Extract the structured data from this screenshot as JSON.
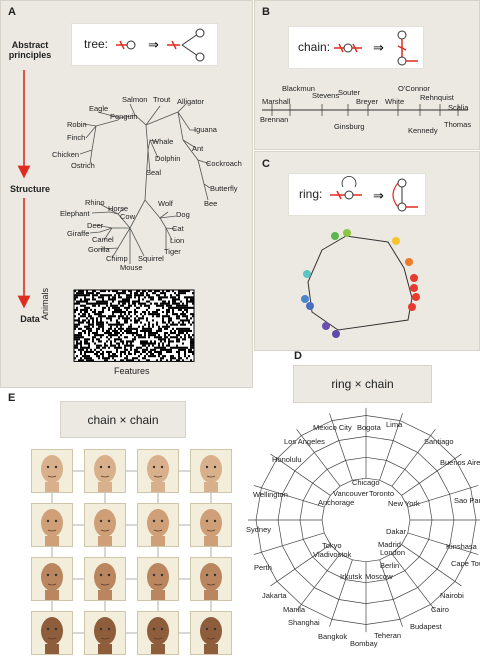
{
  "panels": {
    "a": "A",
    "b": "B",
    "c": "C",
    "d": "D",
    "e": "E"
  },
  "panel_a": {
    "sidebar": {
      "abstract": "Abstract principles",
      "structure": "Structure",
      "data": "Data"
    },
    "form_label": "tree:",
    "tree_labels": [
      "Salmon",
      "Trout",
      "Alligator",
      "Eagle",
      "Penguin",
      "Robin",
      "Finch",
      "Chicken",
      "Ostrich",
      "Iguana",
      "Whale",
      "Ant",
      "Dolphin",
      "Cockroach",
      "Seal",
      "Butterfly",
      "Bee",
      "Rhino",
      "Horse",
      "Elephant",
      "Cow",
      "Deer",
      "Giraffe",
      "Camel",
      "Gorilla",
      "Chimp",
      "Mouse",
      "Squirrel",
      "Wolf",
      "Dog",
      "Cat",
      "Lion",
      "Tiger"
    ],
    "matrix": {
      "ylabel": "Animals",
      "xlabel": "Features"
    }
  },
  "panel_b": {
    "form_label": "chain:",
    "justices": [
      "Marshall",
      "Brennan",
      "Blackmun",
      "Stevens",
      "Souter",
      "Ginsburg",
      "Breyer",
      "White",
      "O'Connor",
      "Rehnquist",
      "Kennedy",
      "Scalia",
      "Thomas"
    ]
  },
  "panel_c": {
    "form_label": "ring:",
    "dot_colors": [
      "#e63b2e",
      "#e63b2e",
      "#e63b2e",
      "#e63b2e",
      "#ee7a2a",
      "#f3c530",
      "#8cc63f",
      "#58b84c",
      "#5bc4c4",
      "#4d85c8",
      "#4d6ec0",
      "#6a4fb0",
      "#5d4aa8"
    ]
  },
  "panel_d": {
    "title": "ring × chain",
    "cities": [
      "Mexico City",
      "Bogota",
      "Lima",
      "Los Angeles",
      "Santiago",
      "Honolulu",
      "Buenos Aires",
      "Chicago",
      "Wellington",
      "Vancouver",
      "Toronto",
      "Anchorage",
      "Sao Paulo",
      "New York",
      "Sydney",
      "Dakar",
      "Madrid",
      "Tokyo",
      "London",
      "Kinshasa",
      "Vladivostok",
      "Berlin",
      "Cape Town",
      "Perth",
      "Irkutsk",
      "Moscow",
      "Jakarta",
      "Nairobi",
      "Manila",
      "Cairo",
      "Shanghai",
      "Budapest",
      "Bangkok",
      "Teheran",
      "Bombay"
    ]
  },
  "panel_e": {
    "title": "chain × chain"
  }
}
